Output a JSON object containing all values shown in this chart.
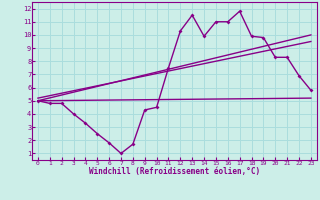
{
  "xlabel": "Windchill (Refroidissement éolien,°C)",
  "bg_color": "#cceee8",
  "line_color": "#880088",
  "grid_color": "#aadddd",
  "x_ticks": [
    0,
    1,
    2,
    3,
    4,
    5,
    6,
    7,
    8,
    9,
    10,
    11,
    12,
    13,
    14,
    15,
    16,
    17,
    18,
    19,
    20,
    21,
    22,
    23
  ],
  "y_ticks": [
    1,
    2,
    3,
    4,
    5,
    6,
    7,
    8,
    9,
    10,
    11,
    12
  ],
  "xlim": [
    -0.5,
    23.5
  ],
  "ylim": [
    0.5,
    12.5
  ],
  "series1_x": [
    0,
    1,
    2,
    3,
    4,
    5,
    6,
    7,
    8,
    9,
    10,
    11,
    12,
    13,
    14,
    15,
    16,
    17,
    18,
    19,
    20,
    21,
    22,
    23
  ],
  "series1_y": [
    5.0,
    4.8,
    4.8,
    4.0,
    3.3,
    2.5,
    1.8,
    1.0,
    1.7,
    4.3,
    4.5,
    7.5,
    10.3,
    11.5,
    9.9,
    11.0,
    11.0,
    11.8,
    9.9,
    9.8,
    8.3,
    8.3,
    6.9,
    5.8
  ],
  "series2_x": [
    0,
    23
  ],
  "series2_y": [
    5.0,
    10.0
  ],
  "series3_x": [
    0,
    23
  ],
  "series3_y": [
    5.2,
    9.5
  ],
  "series4_x": [
    0,
    23
  ],
  "series4_y": [
    5.0,
    5.2
  ]
}
